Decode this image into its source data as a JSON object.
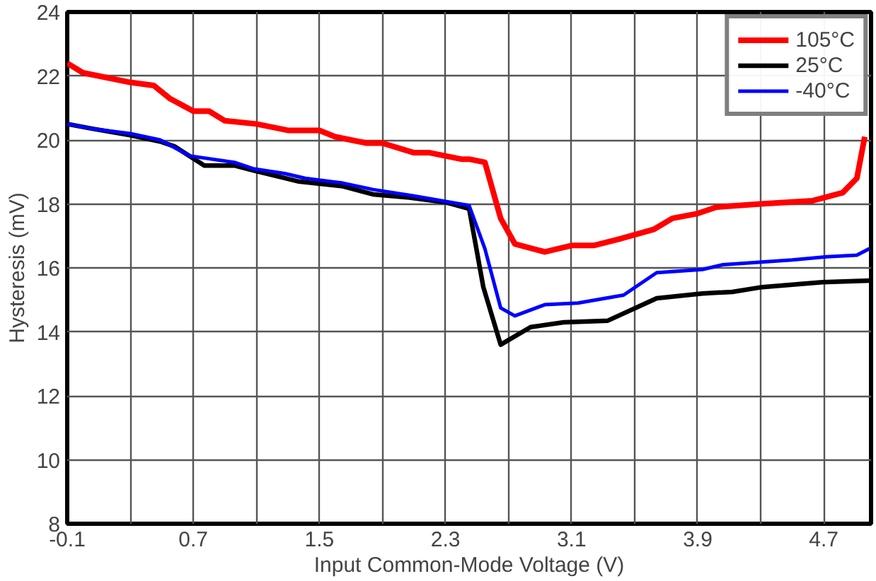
{
  "chart_data": {
    "type": "line",
    "xlabel": "Input Common-Mode Voltage (V)",
    "ylabel": "Hysteresis (mV)",
    "xlim": [
      -0.1,
      5.0
    ],
    "ylim": [
      8,
      24
    ],
    "xticks": [
      -0.1,
      {
        "value": 0.3,
        "label": null
      },
      0.7,
      {
        "value": 1.1,
        "label": null
      },
      1.5,
      {
        "value": 1.9,
        "label": null
      },
      2.3,
      {
        "value": 2.7,
        "label": null
      },
      3.1,
      {
        "value": 3.5,
        "label": null
      },
      3.9,
      {
        "value": 4.3,
        "label": null
      },
      4.7
    ],
    "yticks": [
      8,
      10,
      12,
      14,
      16,
      18,
      20,
      22,
      24
    ],
    "grid": true,
    "legend": "top right",
    "line_style": "solid",
    "marker": "none",
    "series": [
      {
        "name": "105°C",
        "color": "#ff0000",
        "x": [
          -0.1,
          0.0,
          0.1,
          0.3,
          0.45,
          0.55,
          0.7,
          0.8,
          0.9,
          1.1,
          1.3,
          1.5,
          1.6,
          1.8,
          1.9,
          2.1,
          2.2,
          2.4,
          2.45,
          2.55,
          2.65,
          2.74,
          2.93,
          3.1,
          3.24,
          3.4,
          3.62,
          3.74,
          3.9,
          4.02,
          4.3,
          4.63,
          4.82,
          4.91,
          4.96
        ],
        "values": [
          22.4,
          22.1,
          22.0,
          21.8,
          21.7,
          21.3,
          20.9,
          20.9,
          20.6,
          20.5,
          20.3,
          20.3,
          20.1,
          19.9,
          19.9,
          19.6,
          19.6,
          19.4,
          19.4,
          19.3,
          17.55,
          16.75,
          16.5,
          16.7,
          16.7,
          16.9,
          17.2,
          17.55,
          17.7,
          17.9,
          18.0,
          18.1,
          18.35,
          18.8,
          20.1
        ]
      },
      {
        "name": "25°C",
        "color": "#000000",
        "x": [
          -0.1,
          0.06,
          0.3,
          0.49,
          0.58,
          0.77,
          0.96,
          1.08,
          1.37,
          1.65,
          1.84,
          2.07,
          2.3,
          2.45,
          2.54,
          2.65,
          2.84,
          3.05,
          3.33,
          3.64,
          3.93,
          4.12,
          4.31,
          4.69,
          4.99
        ],
        "values": [
          20.5,
          20.35,
          20.15,
          19.95,
          19.8,
          19.2,
          19.2,
          19.05,
          18.7,
          18.55,
          18.3,
          18.2,
          18.05,
          17.85,
          15.4,
          13.6,
          14.15,
          14.3,
          14.35,
          15.05,
          15.2,
          15.25,
          15.4,
          15.55,
          15.6
        ]
      },
      {
        "name": "-40°C",
        "color": "#0000ff",
        "x": [
          -0.1,
          0.06,
          0.3,
          0.49,
          0.68,
          0.96,
          1.08,
          1.28,
          1.41,
          1.65,
          1.84,
          2.1,
          2.45,
          2.55,
          2.65,
          2.74,
          2.93,
          3.14,
          3.43,
          3.64,
          3.93,
          4.06,
          4.5,
          4.72,
          4.91,
          4.99
        ],
        "values": [
          20.5,
          20.35,
          20.2,
          20.0,
          19.5,
          19.3,
          19.1,
          18.95,
          18.8,
          18.65,
          18.45,
          18.25,
          17.95,
          16.6,
          14.75,
          14.5,
          14.85,
          14.9,
          15.15,
          15.85,
          15.95,
          16.1,
          16.25,
          16.35,
          16.4,
          16.6
        ]
      }
    ]
  }
}
